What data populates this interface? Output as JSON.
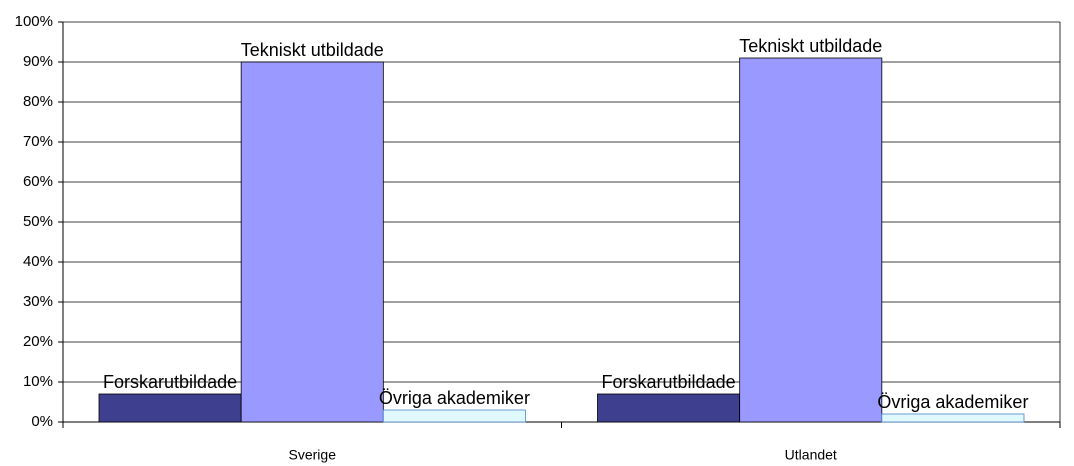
{
  "chart_data": {
    "type": "bar",
    "categories": [
      "Sverige",
      "Utlandet"
    ],
    "series": [
      {
        "name": "Forskarutbildade",
        "color": "#3f3f8f",
        "values": [
          7,
          7
        ]
      },
      {
        "name": "Tekniskt utbildade",
        "color": "#9999ff",
        "values": [
          90,
          91
        ]
      },
      {
        "name": "Övriga akademiker",
        "color": "#e0f8ff",
        "values": [
          3,
          2
        ]
      }
    ],
    "ylim": [
      0,
      100
    ],
    "yticks": [
      {
        "value": 0,
        "label": "0%"
      },
      {
        "value": 10,
        "label": "10%"
      },
      {
        "value": 20,
        "label": "20%"
      },
      {
        "value": 30,
        "label": "30%"
      },
      {
        "value": 40,
        "label": "40%"
      },
      {
        "value": 50,
        "label": "50%"
      },
      {
        "value": 60,
        "label": "60%"
      },
      {
        "value": 70,
        "label": "70%"
      },
      {
        "value": 80,
        "label": "80%"
      },
      {
        "value": 90,
        "label": "90%"
      },
      {
        "value": 100,
        "label": "100%"
      }
    ],
    "grid": true
  }
}
